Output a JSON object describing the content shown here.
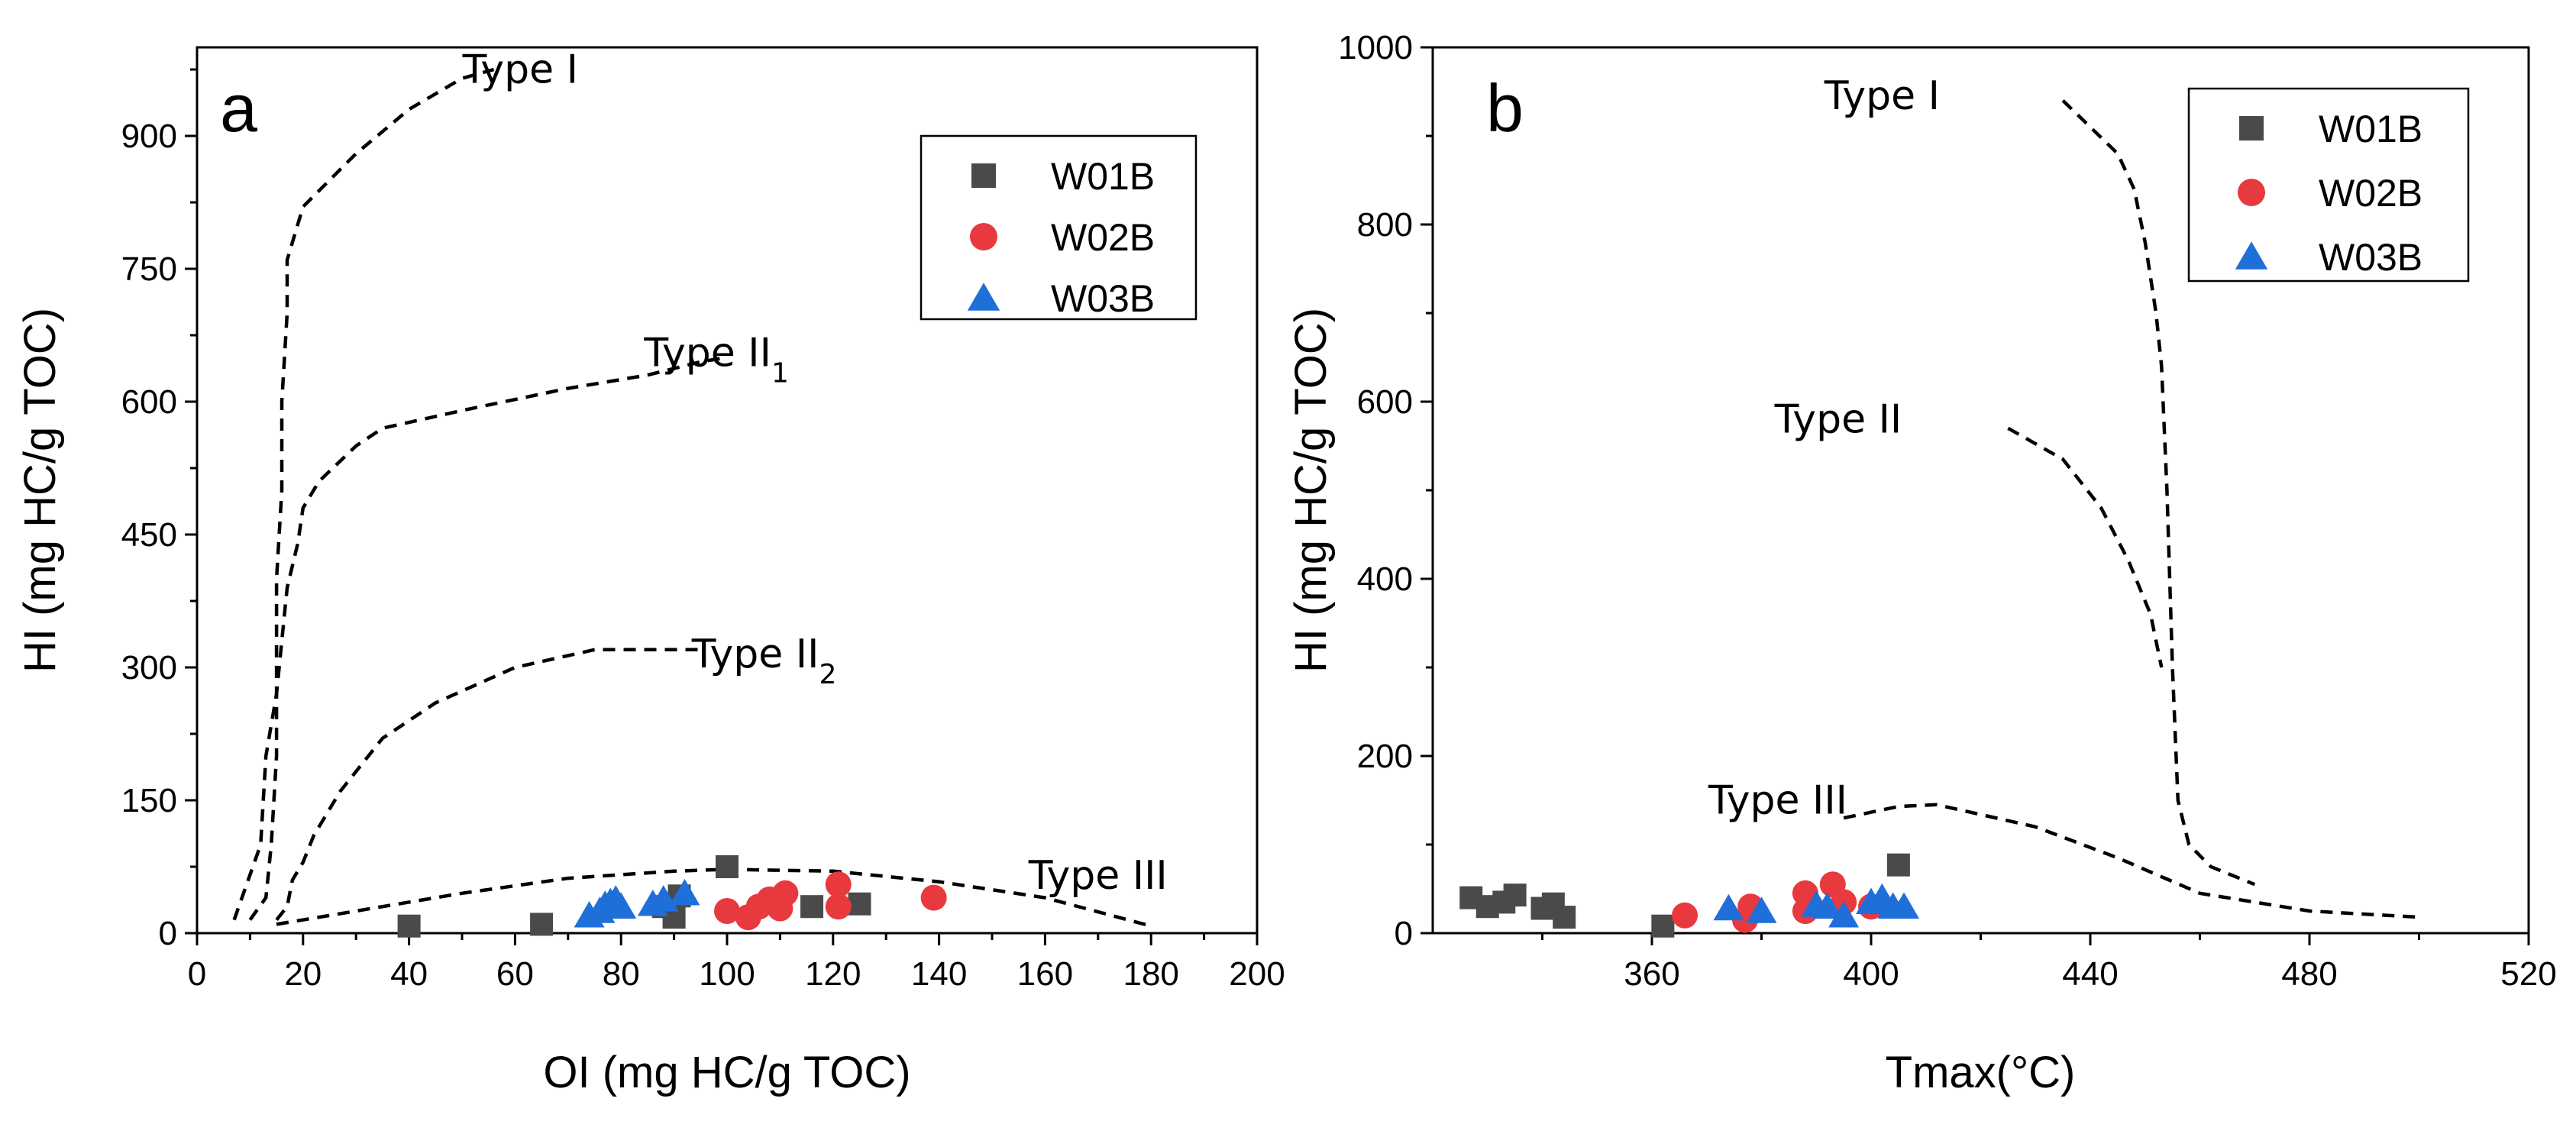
{
  "colors": {
    "W01B": "#4a4a4a",
    "W02B": "#e8393f",
    "W03B": "#1f6fd9"
  },
  "chart_data": [
    {
      "panel": "a",
      "type": "scatter",
      "xlabel": "OI (mg HC/g TOC)",
      "ylabel": "HI (mg HC/g TOC)",
      "xlim": [
        0,
        200
      ],
      "ylim": [
        0,
        1000
      ],
      "xticks": [
        0,
        20,
        40,
        60,
        80,
        100,
        120,
        140,
        160,
        180,
        200
      ],
      "xtick_labels": [
        "0",
        "20",
        "40",
        "60",
        "80",
        "100",
        "120",
        "140",
        "160",
        "180",
        "200"
      ],
      "yticks": [
        0,
        150,
        300,
        450,
        600,
        750,
        900
      ],
      "ytick_labels": [
        "0",
        "150",
        "300",
        "450",
        "600",
        "750",
        "900"
      ],
      "legend": {
        "placement": "top-right",
        "entries": [
          "W01B",
          "W02B",
          "W03B"
        ]
      },
      "series": [
        {
          "name": "W01B",
          "marker": "square",
          "points": [
            [
              40,
              8
            ],
            [
              65,
              10
            ],
            [
              88,
              30
            ],
            [
              90,
              18
            ],
            [
              91,
              42
            ],
            [
              100,
              75
            ],
            [
              116,
              30
            ],
            [
              125,
              33
            ]
          ]
        },
        {
          "name": "W02B",
          "marker": "circle",
          "points": [
            [
              100,
              25
            ],
            [
              104,
              18
            ],
            [
              106,
              30
            ],
            [
              108,
              38
            ],
            [
              110,
              28
            ],
            [
              111,
              45
            ],
            [
              121,
              55
            ],
            [
              121,
              30
            ],
            [
              139,
              40
            ]
          ]
        },
        {
          "name": "W03B",
          "marker": "triangle",
          "points": [
            [
              74,
              20
            ],
            [
              76,
              25
            ],
            [
              77,
              32
            ],
            [
              78,
              35
            ],
            [
              79,
              38
            ],
            [
              80,
              30
            ],
            [
              86,
              33
            ],
            [
              88,
              38
            ],
            [
              92,
              45
            ]
          ]
        }
      ],
      "curves": [
        {
          "label": "Type I",
          "sub": "",
          "points": [
            [
              10,
              15
            ],
            [
              13,
              40
            ],
            [
              14,
              100
            ],
            [
              15,
              200
            ],
            [
              15,
              300
            ],
            [
              15,
              400
            ],
            [
              16,
              500
            ],
            [
              16,
              600
            ],
            [
              17,
              700
            ],
            [
              17,
              760
            ],
            [
              20,
              820
            ],
            [
              25,
              850
            ],
            [
              30,
              880
            ],
            [
              40,
              930
            ],
            [
              50,
              965
            ],
            [
              56,
              975
            ]
          ]
        },
        {
          "label": "Type II",
          "sub": "1",
          "points": [
            [
              7,
              15
            ],
            [
              12,
              100
            ],
            [
              13,
              200
            ],
            [
              15,
              270
            ],
            [
              16,
              330
            ],
            [
              17,
              390
            ],
            [
              19,
              440
            ],
            [
              20,
              480
            ],
            [
              23,
              510
            ],
            [
              30,
              550
            ],
            [
              35,
              570
            ],
            [
              50,
              590
            ],
            [
              70,
              615
            ],
            [
              85,
              630
            ],
            [
              95,
              645
            ],
            [
              100,
              650
            ]
          ]
        },
        {
          "label": "Type II",
          "sub": "2",
          "points": [
            [
              15,
              15
            ],
            [
              17,
              30
            ],
            [
              18,
              60
            ],
            [
              20,
              80
            ],
            [
              22,
              110
            ],
            [
              27,
              160
            ],
            [
              35,
              220
            ],
            [
              45,
              260
            ],
            [
              60,
              300
            ],
            [
              75,
              320
            ],
            [
              85,
              320
            ],
            [
              95,
              320
            ]
          ]
        },
        {
          "label": "Type III",
          "sub": "",
          "points": [
            [
              15,
              10
            ],
            [
              30,
              25
            ],
            [
              50,
              45
            ],
            [
              70,
              62
            ],
            [
              90,
              70
            ],
            [
              100,
              72
            ],
            [
              120,
              70
            ],
            [
              140,
              58
            ],
            [
              160,
              40
            ],
            [
              180,
              8
            ]
          ]
        }
      ],
      "curve_labels": [
        {
          "text": "Type I",
          "sub": "",
          "at": [
            61,
            960
          ]
        },
        {
          "text": "Type II",
          "sub": "1",
          "at": [
            98,
            640
          ]
        },
        {
          "text": "Type II",
          "sub": "2",
          "at": [
            107,
            300
          ]
        },
        {
          "text": "Type III",
          "sub": "",
          "at": [
            170,
            50
          ]
        }
      ]
    },
    {
      "panel": "b",
      "type": "scatter",
      "xlabel": "Tmax(°C)",
      "ylabel": "HI (mg HC/g TOC)",
      "xlim": [
        320,
        520
      ],
      "ylim": [
        0,
        1000
      ],
      "xticks": [
        360,
        400,
        440,
        480,
        520
      ],
      "xtick_labels": [
        "360",
        "400",
        "440",
        "480",
        "520"
      ],
      "yticks": [
        0,
        200,
        400,
        600,
        800,
        1000
      ],
      "ytick_labels": [
        "0",
        "200",
        "400",
        "600",
        "800",
        "1000"
      ],
      "legend": {
        "placement": "top-right",
        "entries": [
          "W01B",
          "W02B",
          "W03B"
        ]
      },
      "series": [
        {
          "name": "W01B",
          "marker": "square",
          "points": [
            [
              327,
              40
            ],
            [
              330,
              30
            ],
            [
              333,
              35
            ],
            [
              335,
              43
            ],
            [
              340,
              28
            ],
            [
              342,
              33
            ],
            [
              344,
              18
            ],
            [
              362,
              8
            ],
            [
              405,
              77
            ]
          ]
        },
        {
          "name": "W02B",
          "marker": "circle",
          "points": [
            [
              366,
              20
            ],
            [
              377,
              15
            ],
            [
              378,
              30
            ],
            [
              388,
              45
            ],
            [
              388,
              25
            ],
            [
              393,
              55
            ],
            [
              395,
              35
            ],
            [
              400,
              30
            ]
          ]
        },
        {
          "name": "W03B",
          "marker": "triangle",
          "points": [
            [
              374,
              28
            ],
            [
              380,
              25
            ],
            [
              390,
              32
            ],
            [
              392,
              30
            ],
            [
              395,
              20
            ],
            [
              400,
              35
            ],
            [
              402,
              40
            ],
            [
              404,
              30
            ],
            [
              406,
              30
            ]
          ]
        }
      ],
      "curves": [
        {
          "label": "Type I",
          "sub": "",
          "points": [
            [
              435,
              940
            ],
            [
              440,
              910
            ],
            [
              445,
              880
            ],
            [
              448,
              840
            ],
            [
              450,
              780
            ],
            [
              452,
              700
            ],
            [
              453,
              640
            ],
            [
              454,
              500
            ],
            [
              455,
              300
            ],
            [
              456,
              150
            ],
            [
              458,
              100
            ],
            [
              462,
              75
            ],
            [
              470,
              55
            ]
          ]
        },
        {
          "label": "Type II",
          "sub": "",
          "points": [
            [
              425,
              570
            ],
            [
              435,
              535
            ],
            [
              442,
              480
            ],
            [
              447,
              420
            ],
            [
              451,
              360
            ],
            [
              453,
              300
            ]
          ]
        },
        {
          "label": "Type III",
          "sub": "",
          "points": [
            [
              395,
              130
            ],
            [
              405,
              143
            ],
            [
              412,
              145
            ],
            [
              430,
              120
            ],
            [
              445,
              85
            ],
            [
              460,
              45
            ],
            [
              480,
              25
            ],
            [
              500,
              18
            ]
          ]
        }
      ],
      "curve_labels": [
        {
          "text": "Type I",
          "sub": "",
          "at": [
            402,
            930
          ]
        },
        {
          "text": "Type II",
          "sub": "",
          "at": [
            394,
            565
          ]
        },
        {
          "text": "Type III",
          "sub": "",
          "at": [
            383,
            135
          ]
        }
      ]
    }
  ]
}
